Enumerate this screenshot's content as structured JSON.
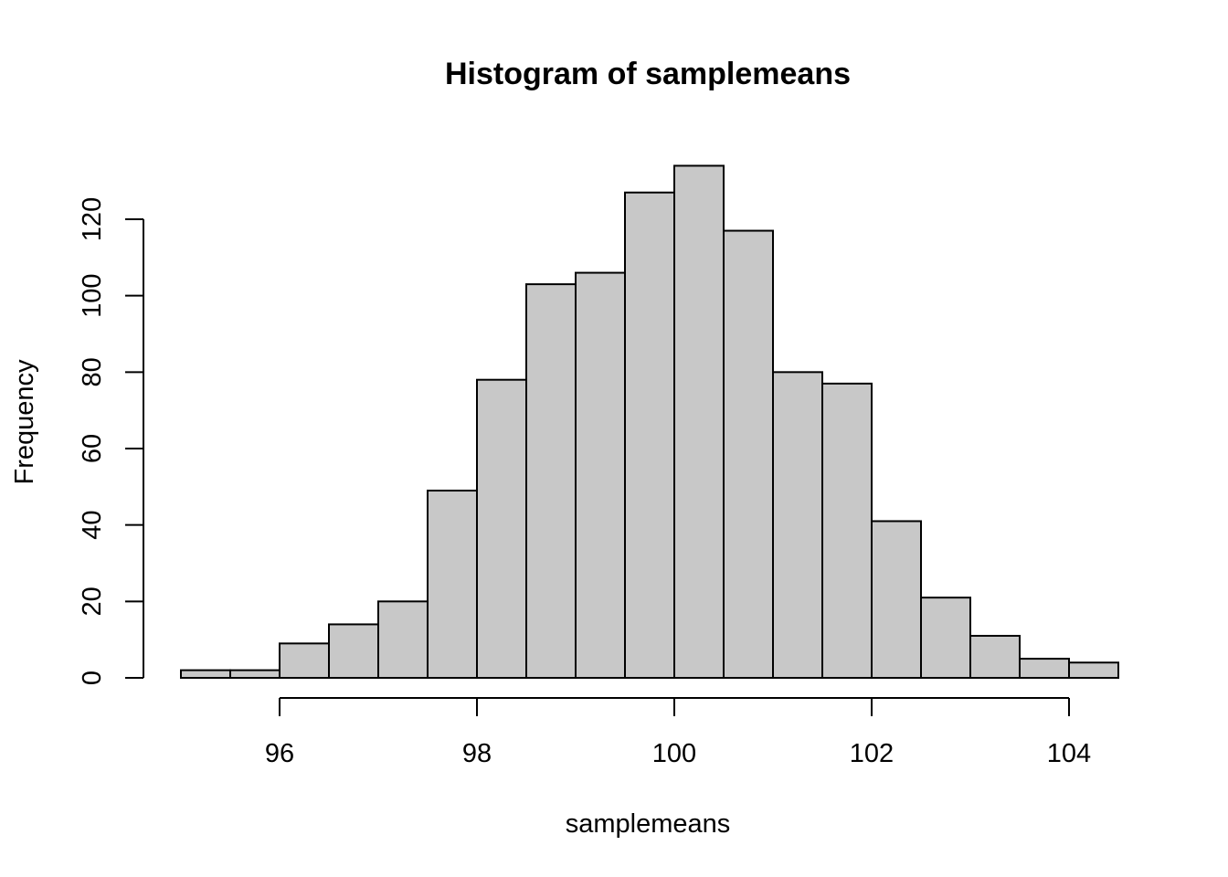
{
  "chart_data": {
    "type": "bar",
    "title": "Histogram of samplemeans",
    "xlabel": "samplemeans",
    "ylabel": "Frequency",
    "xlim": [
      95,
      104.5
    ],
    "ylim": [
      0,
      134
    ],
    "x_ticks": [
      96,
      98,
      100,
      102,
      104
    ],
    "y_ticks": [
      0,
      20,
      40,
      60,
      80,
      100,
      120
    ],
    "bin_width": 0.5,
    "bins": [
      {
        "start": 95.0,
        "end": 95.5,
        "count": 2
      },
      {
        "start": 95.5,
        "end": 96.0,
        "count": 2
      },
      {
        "start": 96.0,
        "end": 96.5,
        "count": 9
      },
      {
        "start": 96.5,
        "end": 97.0,
        "count": 14
      },
      {
        "start": 97.0,
        "end": 97.5,
        "count": 20
      },
      {
        "start": 97.5,
        "end": 98.0,
        "count": 49
      },
      {
        "start": 98.0,
        "end": 98.5,
        "count": 78
      },
      {
        "start": 98.5,
        "end": 99.0,
        "count": 103
      },
      {
        "start": 99.0,
        "end": 99.5,
        "count": 106
      },
      {
        "start": 99.5,
        "end": 100.0,
        "count": 127
      },
      {
        "start": 100.0,
        "end": 100.5,
        "count": 134
      },
      {
        "start": 100.5,
        "end": 101.0,
        "count": 117
      },
      {
        "start": 101.0,
        "end": 101.5,
        "count": 80
      },
      {
        "start": 101.5,
        "end": 102.0,
        "count": 77
      },
      {
        "start": 102.0,
        "end": 102.5,
        "count": 41
      },
      {
        "start": 102.5,
        "end": 103.0,
        "count": 21
      },
      {
        "start": 103.0,
        "end": 103.5,
        "count": 11
      },
      {
        "start": 103.5,
        "end": 104.0,
        "count": 5
      },
      {
        "start": 104.0,
        "end": 104.5,
        "count": 4
      }
    ],
    "colors": {
      "bar_fill": "#c8c8c8",
      "bar_stroke": "#000000"
    },
    "grid": false
  }
}
